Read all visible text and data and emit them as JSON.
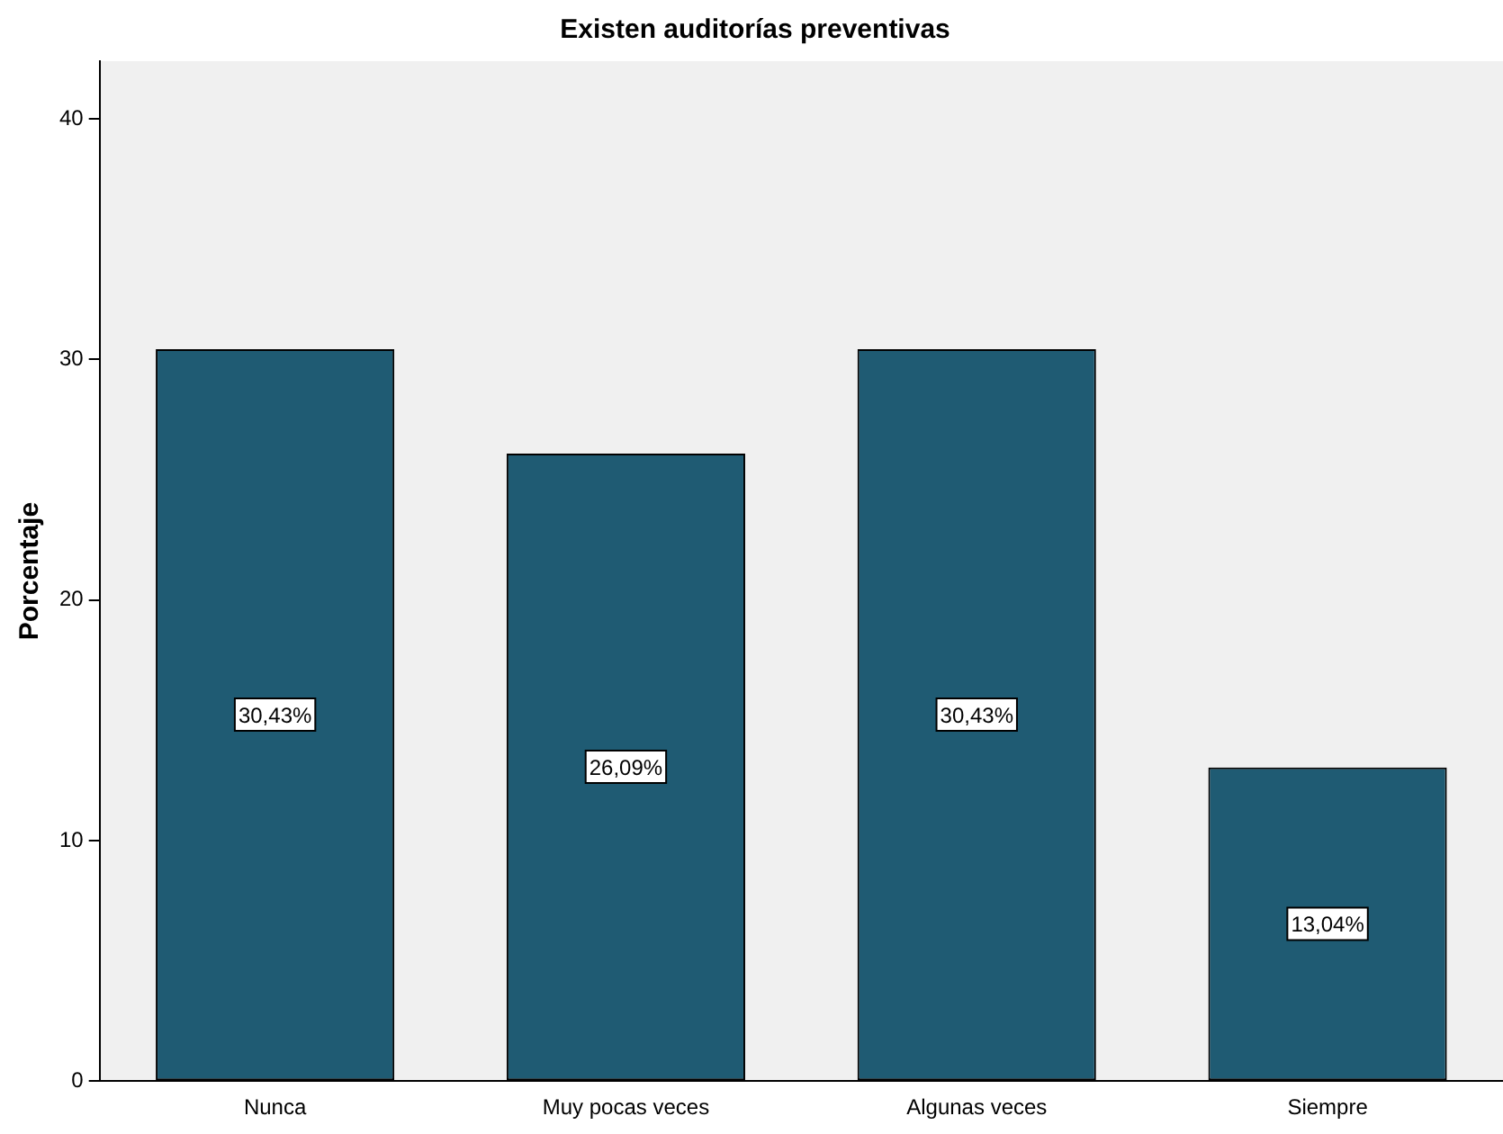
{
  "chart_data": {
    "type": "bar",
    "title": "Existen auditorías preventivas",
    "ylabel": "Porcentaje",
    "categories": [
      "Nunca",
      "Muy pocas veces",
      "Algunas veces",
      "Siempre"
    ],
    "values": [
      30.43,
      26.09,
      30.43,
      13.04
    ],
    "value_labels": [
      "30,43%",
      "26,09%",
      "30,43%",
      "13,04%"
    ],
    "color": "#1f5b73",
    "ylim": [
      0,
      42.4
    ],
    "yticks": [
      0,
      10,
      20,
      30,
      40
    ],
    "grid": false,
    "legend": false
  }
}
